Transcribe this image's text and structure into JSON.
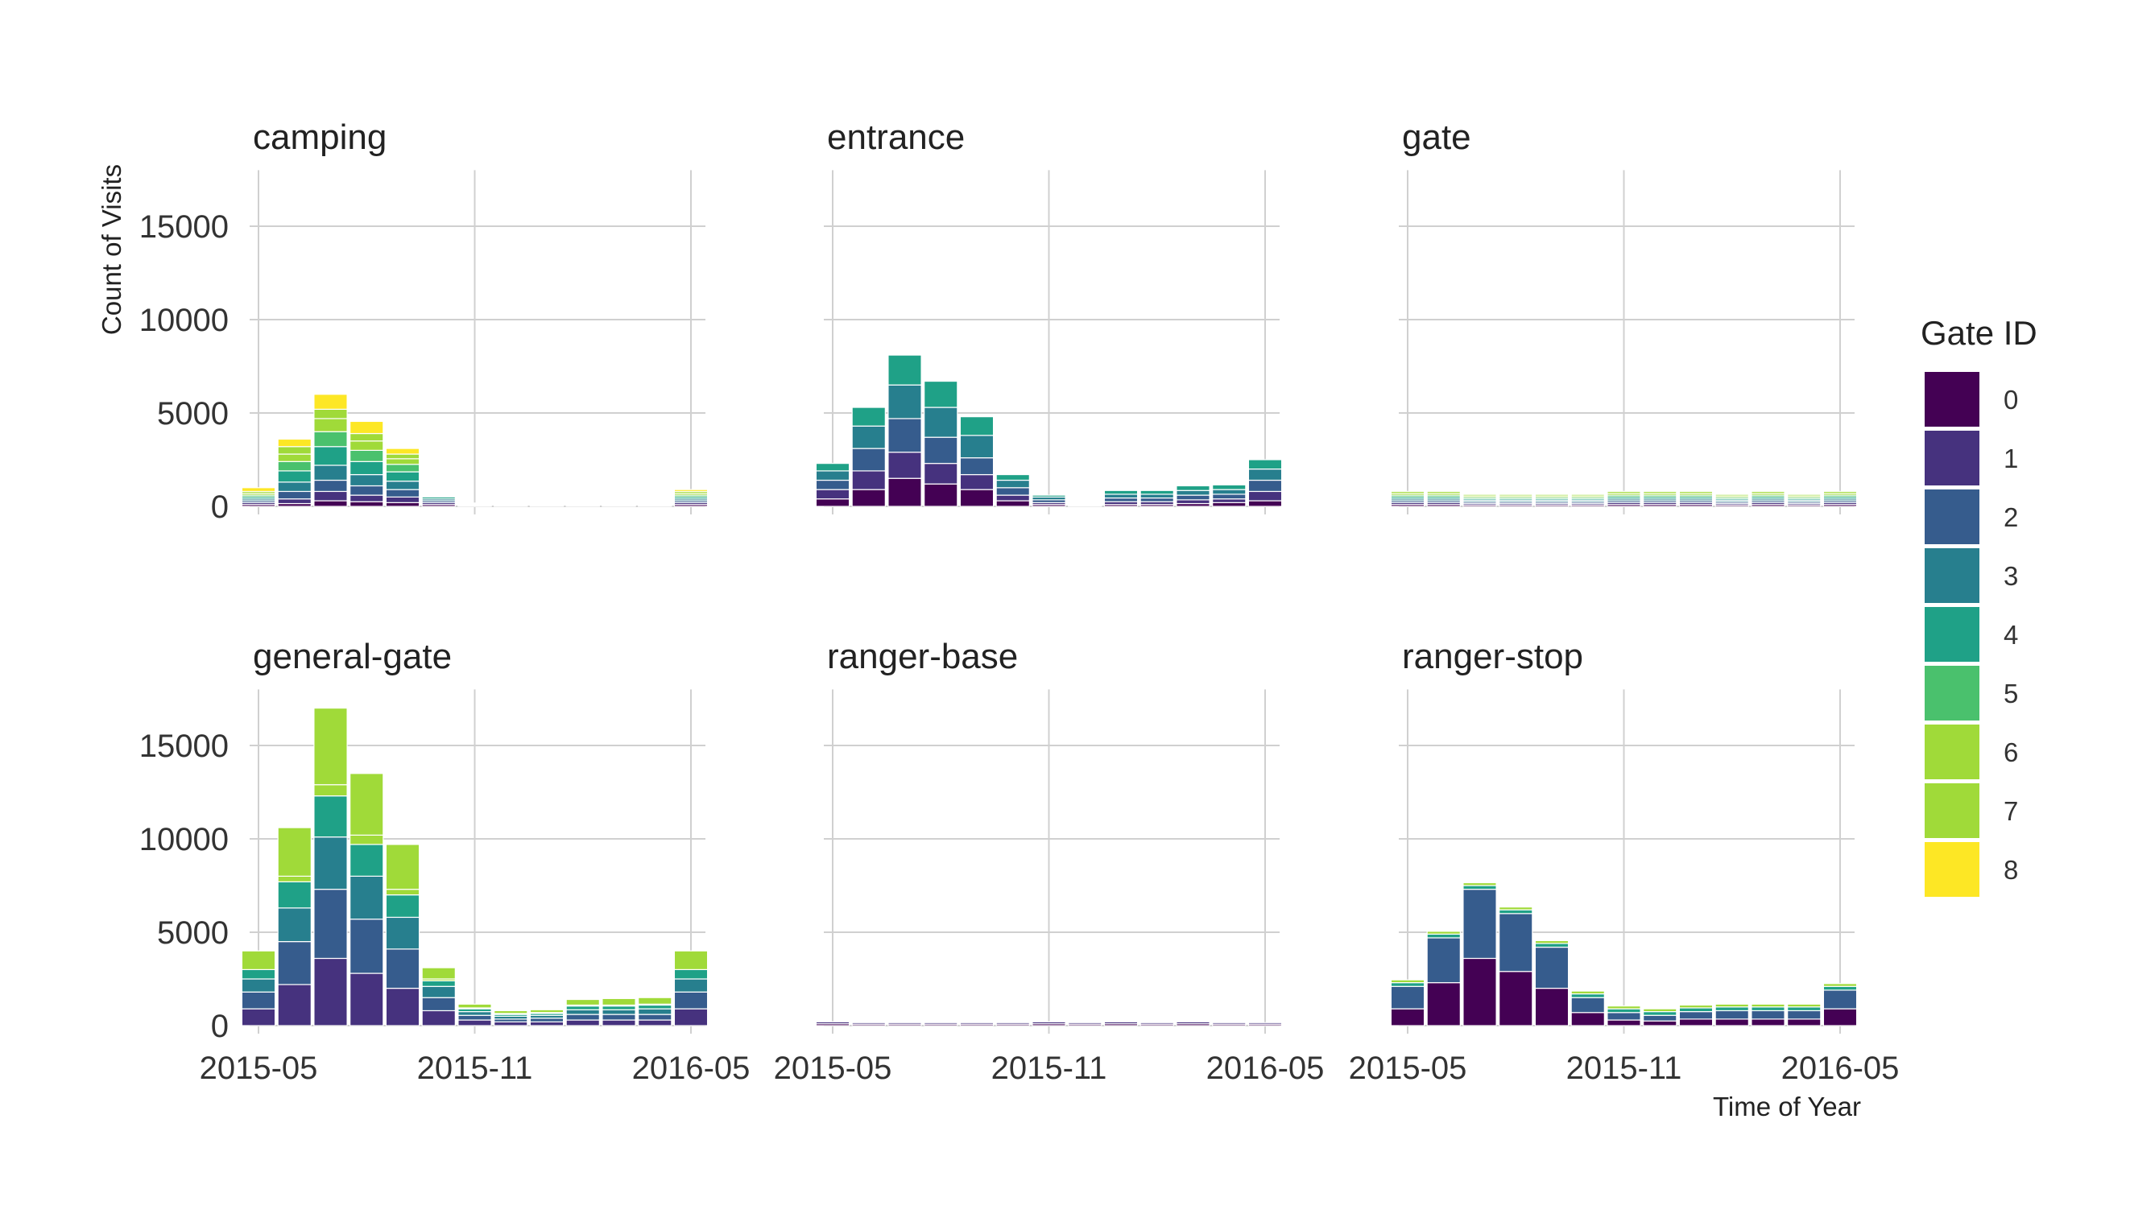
{
  "chart_data": {
    "type": "bar",
    "stacked": true,
    "facet_layout": "3 columns x 2 rows",
    "xlabel": "Time of Year",
    "ylabel": "Count of Visits",
    "ylim": [
      0,
      18000
    ],
    "y_ticks": [
      0,
      5000,
      10000,
      15000
    ],
    "x_ticks": [
      "2015-05",
      "2015-11",
      "2016-05"
    ],
    "months": [
      "2015-05",
      "2015-06",
      "2015-07",
      "2015-08",
      "2015-09",
      "2015-10",
      "2015-11",
      "2015-12",
      "2016-01",
      "2016-02",
      "2016-03",
      "2016-04",
      "2016-05"
    ],
    "grid": true,
    "legend": {
      "title": "Gate ID",
      "position": "right",
      "entries": [
        "0",
        "1",
        "2",
        "3",
        "4",
        "5",
        "6",
        "7",
        "8"
      ],
      "colors": [
        "#440154",
        "#46327e",
        "#365c8d",
        "#277f8e",
        "#1fa187",
        "#4ac16d",
        "#a0da39",
        "#a0da39",
        "#fde725"
      ]
    },
    "facets": [
      {
        "title": "camping",
        "series": [
          {
            "name": "0",
            "values": [
              100,
              150,
              300,
              250,
              200,
              100,
              30,
              30,
              20,
              20,
              30,
              30,
              100
            ]
          },
          {
            "name": "1",
            "values": [
              100,
              250,
              500,
              350,
              300,
              100,
              20,
              20,
              20,
              20,
              20,
              20,
              100
            ]
          },
          {
            "name": "2",
            "values": [
              100,
              400,
              600,
              500,
              400,
              100,
              20,
              20,
              20,
              20,
              20,
              20,
              100
            ]
          },
          {
            "name": "3",
            "values": [
              100,
              500,
              800,
              600,
              450,
              100,
              20,
              20,
              20,
              20,
              20,
              20,
              100
            ]
          },
          {
            "name": "4",
            "values": [
              100,
              600,
              1000,
              700,
              500,
              100,
              20,
              20,
              20,
              20,
              20,
              20,
              100
            ]
          },
          {
            "name": "5",
            "values": [
              100,
              500,
              800,
              600,
              400,
              50,
              20,
              20,
              20,
              20,
              20,
              20,
              100
            ]
          },
          {
            "name": "6",
            "values": [
              100,
              400,
              700,
              500,
              300,
              50,
              20,
              20,
              10,
              10,
              20,
              20,
              100
            ]
          },
          {
            "name": "7",
            "values": [
              100,
              400,
              500,
              400,
              250,
              50,
              20,
              20,
              10,
              10,
              20,
              20,
              100
            ]
          },
          {
            "name": "8",
            "values": [
              200,
              400,
              800,
              650,
              300,
              50,
              10,
              10,
              10,
              10,
              10,
              10,
              100
            ]
          }
        ]
      },
      {
        "title": "entrance",
        "series": [
          {
            "name": "0",
            "values": [
              400,
              900,
              1500,
              1200,
              900,
              300,
              100,
              50,
              100,
              100,
              150,
              200,
              300
            ]
          },
          {
            "name": "1",
            "values": [
              500,
              1000,
              1400,
              1100,
              800,
              300,
              100,
              50,
              150,
              150,
              200,
              200,
              500
            ]
          },
          {
            "name": "2",
            "values": [
              500,
              1200,
              1800,
              1400,
              900,
              400,
              150,
              50,
              200,
              200,
              250,
              250,
              600
            ]
          },
          {
            "name": "3",
            "values": [
              500,
              1200,
              1800,
              1600,
              1200,
              400,
              150,
              50,
              200,
              200,
              250,
              250,
              600
            ]
          },
          {
            "name": "4",
            "values": [
              400,
              1000,
              1600,
              1400,
              1000,
              300,
              100,
              50,
              200,
              200,
              250,
              250,
              500
            ]
          }
        ]
      },
      {
        "title": "gate",
        "series": [
          {
            "name": "0",
            "values": [
              100,
              100,
              80,
              80,
              80,
              80,
              100,
              100,
              100,
              80,
              100,
              80,
              100
            ]
          },
          {
            "name": "1",
            "values": [
              100,
              100,
              80,
              80,
              80,
              80,
              100,
              100,
              100,
              80,
              100,
              80,
              100
            ]
          },
          {
            "name": "2",
            "values": [
              100,
              100,
              80,
              80,
              80,
              80,
              100,
              100,
              100,
              80,
              100,
              80,
              100
            ]
          },
          {
            "name": "3",
            "values": [
              100,
              100,
              80,
              80,
              80,
              80,
              100,
              100,
              100,
              80,
              100,
              80,
              100
            ]
          },
          {
            "name": "4",
            "values": [
              100,
              100,
              80,
              80,
              80,
              80,
              100,
              100,
              100,
              80,
              100,
              80,
              100
            ]
          },
          {
            "name": "5",
            "values": [
              100,
              100,
              80,
              80,
              80,
              80,
              100,
              100,
              100,
              80,
              100,
              80,
              100
            ]
          },
          {
            "name": "6",
            "values": [
              100,
              100,
              80,
              80,
              80,
              80,
              100,
              100,
              100,
              80,
              100,
              80,
              100
            ]
          },
          {
            "name": "7",
            "values": [
              100,
              100,
              80,
              80,
              80,
              80,
              100,
              100,
              100,
              80,
              100,
              80,
              100
            ]
          }
        ]
      },
      {
        "title": "general-gate",
        "series": [
          {
            "name": "0",
            "values": [
              0,
              0,
              0,
              0,
              0,
              0,
              0,
              0,
              0,
              0,
              0,
              0,
              0
            ]
          },
          {
            "name": "1",
            "values": [
              900,
              2200,
              3600,
              2800,
              2000,
              800,
              300,
              200,
              200,
              300,
              300,
              300,
              900
            ]
          },
          {
            "name": "2",
            "values": [
              900,
              2300,
              3700,
              2900,
              2100,
              700,
              250,
              150,
              200,
              300,
              300,
              300,
              900
            ]
          },
          {
            "name": "3",
            "values": [
              700,
              1800,
              2800,
              2300,
              1700,
              600,
              200,
              150,
              150,
              250,
              250,
              300,
              700
            ]
          },
          {
            "name": "4",
            "values": [
              500,
              1400,
              2200,
              1700,
              1200,
              300,
              150,
              100,
              100,
              200,
              200,
              200,
              500
            ]
          },
          {
            "name": "5",
            "values": [
              0,
              0,
              0,
              0,
              0,
              0,
              0,
              0,
              0,
              0,
              0,
              0,
              0
            ]
          },
          {
            "name": "6",
            "values": [
              0,
              300,
              600,
              500,
              300,
              100,
              50,
              50,
              50,
              50,
              50,
              50,
              0
            ]
          },
          {
            "name": "7",
            "values": [
              1000,
              2600,
              4100,
              3300,
              2400,
              600,
              200,
              150,
              150,
              300,
              350,
              350,
              1000
            ]
          }
        ]
      },
      {
        "title": "ranger-base",
        "series": [
          {
            "name": "0",
            "values": [
              100,
              80,
              80,
              80,
              80,
              80,
              100,
              80,
              100,
              80,
              100,
              80,
              80
            ]
          },
          {
            "name": "1",
            "values": [
              100,
              80,
              80,
              80,
              80,
              80,
              100,
              80,
              100,
              80,
              100,
              80,
              80
            ]
          }
        ]
      },
      {
        "title": "ranger-stop",
        "series": [
          {
            "name": "0",
            "values": [
              900,
              2300,
              3600,
              2900,
              2000,
              700,
              300,
              250,
              350,
              350,
              350,
              350,
              900
            ]
          },
          {
            "name": "2",
            "values": [
              1200,
              2400,
              3700,
              3100,
              2200,
              800,
              400,
              300,
              400,
              450,
              450,
              450,
              1000
            ]
          },
          {
            "name": "4",
            "values": [
              200,
              200,
              200,
              200,
              200,
              200,
              200,
              200,
              200,
              200,
              200,
              200,
              200
            ]
          },
          {
            "name": "6",
            "values": [
              150,
              150,
              150,
              150,
              150,
              150,
              150,
              150,
              150,
              150,
              150,
              150,
              150
            ]
          }
        ]
      }
    ]
  }
}
